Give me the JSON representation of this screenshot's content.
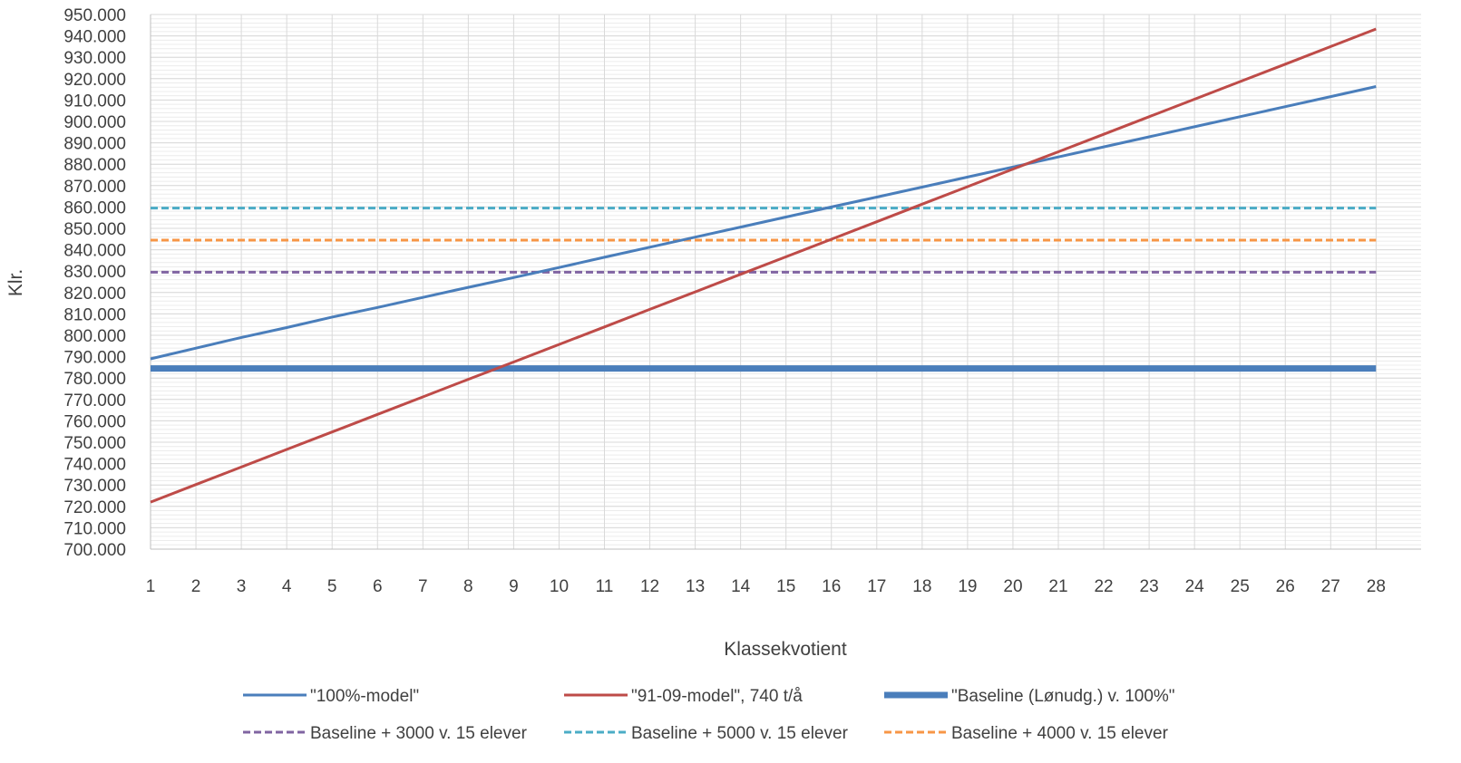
{
  "chart_data": {
    "type": "line",
    "xlabel": "Klassekvotient",
    "ylabel": "Klr.",
    "x": [
      1,
      2,
      3,
      4,
      5,
      6,
      7,
      8,
      9,
      10,
      11,
      12,
      13,
      14,
      15,
      16,
      17,
      18,
      19,
      20,
      21,
      22,
      23,
      24,
      25,
      26,
      27,
      28
    ],
    "ylim": [
      700000,
      950000
    ],
    "ytick_step": 10000,
    "ytick_labels": [
      "700.000",
      "710.000",
      "720.000",
      "730.000",
      "740.000",
      "750.000",
      "760.000",
      "770.000",
      "780.000",
      "790.000",
      "800.000",
      "810.000",
      "820.000",
      "830.000",
      "840.000",
      "850.000",
      "860.000",
      "870.000",
      "880.000",
      "890.000",
      "900.000",
      "910.000",
      "920.000",
      "930.000",
      "940.000",
      "950.000"
    ],
    "grid": true,
    "legend_position": "bottom",
    "series": [
      {
        "name": "\"100%-model\"",
        "color": "#4a7ebb",
        "style": "solid",
        "weight": "normal",
        "values": [
          789000,
          794000,
          799000,
          803600,
          808500,
          813000,
          817700,
          822400,
          827000,
          831700,
          836500,
          841200,
          845900,
          850600,
          855300,
          860000,
          864600,
          869300,
          874000,
          878700,
          883400,
          888100,
          892800,
          897500,
          902200,
          906900,
          911600,
          916300
        ]
      },
      {
        "name": "\"91-09-model\", 740 t/å",
        "color": "#be4b48",
        "style": "solid",
        "weight": "normal",
        "values": [
          722000,
          730200,
          738400,
          746600,
          754800,
          763000,
          771200,
          779400,
          787500,
          795700,
          803900,
          812100,
          820300,
          828500,
          836700,
          844900,
          853100,
          861300,
          869500,
          877700,
          885800,
          894000,
          902200,
          910400,
          918600,
          926800,
          935000,
          943200
        ]
      },
      {
        "name": "\"Baseline (Lønudg.) v. 100%\"",
        "color": "#4a7ebb",
        "style": "solid",
        "weight": "thick",
        "values": [
          784500,
          784500,
          784500,
          784500,
          784500,
          784500,
          784500,
          784500,
          784500,
          784500,
          784500,
          784500,
          784500,
          784500,
          784500,
          784500,
          784500,
          784500,
          784500,
          784500,
          784500,
          784500,
          784500,
          784500,
          784500,
          784500,
          784500,
          784500
        ]
      },
      {
        "name": "Baseline + 3000 v. 15 elever",
        "color": "#8064a2",
        "style": "dashed",
        "weight": "normal",
        "values": [
          829500,
          829500,
          829500,
          829500,
          829500,
          829500,
          829500,
          829500,
          829500,
          829500,
          829500,
          829500,
          829500,
          829500,
          829500,
          829500,
          829500,
          829500,
          829500,
          829500,
          829500,
          829500,
          829500,
          829500,
          829500,
          829500,
          829500,
          829500
        ]
      },
      {
        "name": "Baseline + 5000 v. 15 elever",
        "color": "#4bacc6",
        "style": "dashed",
        "weight": "normal",
        "values": [
          859500,
          859500,
          859500,
          859500,
          859500,
          859500,
          859500,
          859500,
          859500,
          859500,
          859500,
          859500,
          859500,
          859500,
          859500,
          859500,
          859500,
          859500,
          859500,
          859500,
          859500,
          859500,
          859500,
          859500,
          859500,
          859500,
          859500,
          859500
        ]
      },
      {
        "name": "Baseline + 4000 v. 15 elever",
        "color": "#f79646",
        "style": "dashed",
        "weight": "normal",
        "values": [
          844500,
          844500,
          844500,
          844500,
          844500,
          844500,
          844500,
          844500,
          844500,
          844500,
          844500,
          844500,
          844500,
          844500,
          844500,
          844500,
          844500,
          844500,
          844500,
          844500,
          844500,
          844500,
          844500,
          844500,
          844500,
          844500,
          844500,
          844500
        ]
      }
    ]
  }
}
